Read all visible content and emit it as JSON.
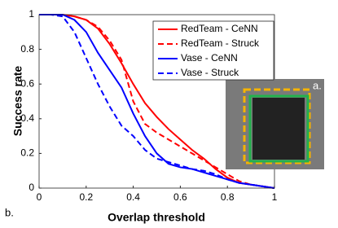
{
  "chart_data": {
    "type": "line",
    "xlabel": "Overlap threshold",
    "ylabel": "Success rate",
    "annotations": [
      "a.",
      "b."
    ],
    "x": [
      0,
      0.05,
      0.1,
      0.15,
      0.2,
      0.25,
      0.3,
      0.35,
      0.4,
      0.45,
      0.5,
      0.55,
      0.6,
      0.65,
      0.7,
      0.75,
      0.8,
      0.85,
      0.9,
      0.95,
      1
    ],
    "series": [
      {
        "name": "RedTeam - CeNN",
        "color": "#ff0000",
        "line_style": "solid",
        "values": [
          1,
          1,
          1,
          0.99,
          0.97,
          0.92,
          0.83,
          0.72,
          0.6,
          0.49,
          0.41,
          0.34,
          0.28,
          0.22,
          0.17,
          0.11,
          0.06,
          0.03,
          0.02,
          0.01,
          0
        ]
      },
      {
        "name": "RedTeam - Struck",
        "color": "#ff0000",
        "line_style": "dashed",
        "values": [
          1,
          1,
          1,
          0.99,
          0.97,
          0.93,
          0.85,
          0.74,
          0.5,
          0.37,
          0.32,
          0.28,
          0.24,
          0.2,
          0.16,
          0.12,
          0.08,
          0.04,
          0.02,
          0.01,
          0
        ]
      },
      {
        "name": "Vase - CeNN",
        "color": "#0000ff",
        "line_style": "solid",
        "values": [
          1,
          1,
          1,
          0.97,
          0.9,
          0.78,
          0.68,
          0.58,
          0.43,
          0.3,
          0.2,
          0.14,
          0.12,
          0.11,
          0.09,
          0.07,
          0.05,
          0.03,
          0.02,
          0.01,
          0
        ]
      },
      {
        "name": "Vase - Struck",
        "color": "#0000ff",
        "line_style": "dashed",
        "values": [
          1,
          1,
          0.99,
          0.9,
          0.75,
          0.6,
          0.47,
          0.36,
          0.3,
          0.22,
          0.17,
          0.15,
          0.13,
          0.11,
          0.1,
          0.08,
          0.05,
          0.03,
          0.02,
          0.01,
          0
        ]
      }
    ],
    "xlim": [
      0,
      1
    ],
    "xticks": [
      0,
      0.2,
      0.4,
      0.6,
      0.8,
      1
    ],
    "ylim": [
      0,
      1
    ],
    "yticks": [
      0,
      0.2,
      0.4,
      0.6,
      0.8,
      1
    ],
    "legend": "top-right",
    "grid": false
  }
}
